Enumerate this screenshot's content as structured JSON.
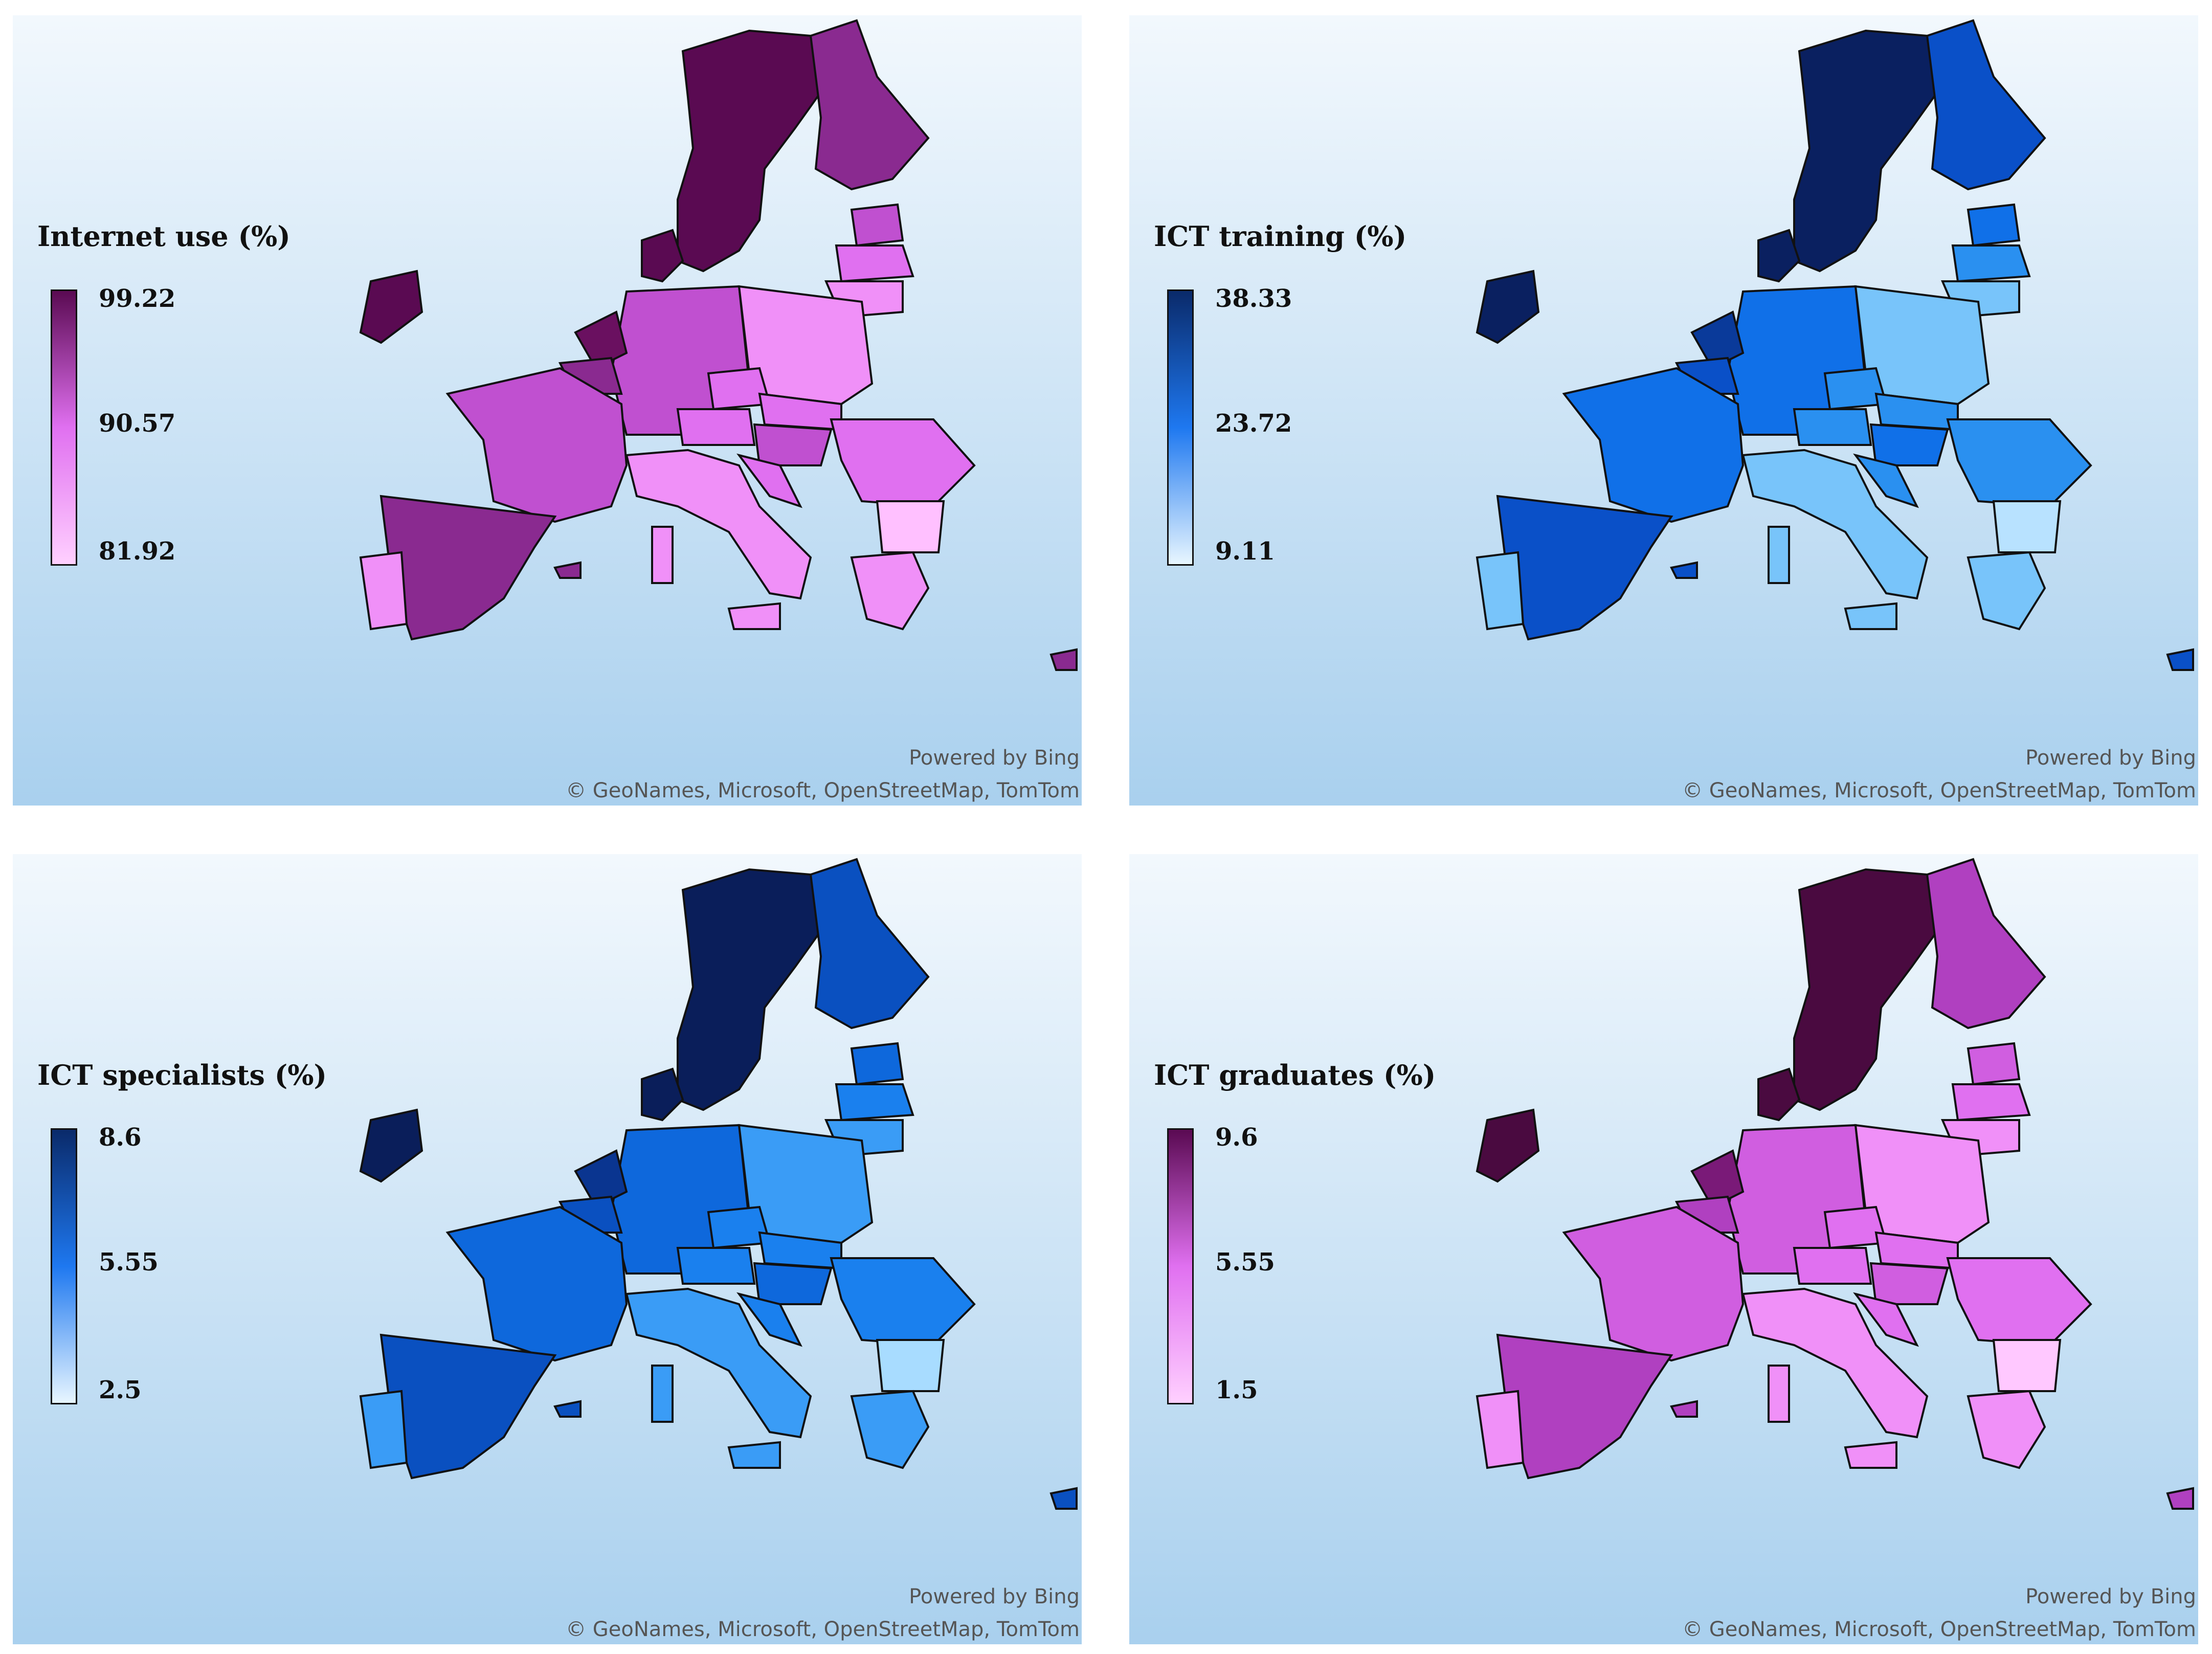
{
  "panels": [
    {
      "title": "Internet use (%)",
      "legend": {
        "max": "99.22",
        "mid": "90.57",
        "min": "81.92"
      },
      "colors": {
        "low": "#ffd0ff",
        "mid": "#e070f0",
        "high": "#5a0a52",
        "c1": "#5a0a52",
        "c2": "#6a1060",
        "c3": "#8a2a90",
        "c4": "#c050d0",
        "c5": "#e070f0",
        "c6": "#f090f8",
        "c7": "#ffc0ff"
      },
      "powered": "Powered by Bing",
      "copyright": "© GeoNames, Microsoft, OpenStreetMap, TomTom"
    },
    {
      "title": "ICT training (%)",
      "legend": {
        "max": "38.33",
        "mid": "23.72",
        "min": "9.11"
      },
      "colors": {
        "low": "#e8f6ff",
        "mid": "#1e78f0",
        "high": "#0a2a6a",
        "c1": "#0a2060",
        "c2": "#0a3a9a",
        "c3": "#0a50c8",
        "c4": "#1070e8",
        "c5": "#2a90f0",
        "c6": "#78c4fa",
        "c7": "#b8e2ff"
      },
      "powered": "Powered by Bing",
      "copyright": "© GeoNames, Microsoft, OpenStreetMap, TomTom"
    },
    {
      "title": "ICT specialists (%)",
      "legend": {
        "max": "8.6",
        "mid": "5.55",
        "min": "2.5"
      },
      "colors": {
        "low": "#e8f6ff",
        "mid": "#1e78f0",
        "high": "#0a2a6a",
        "c1": "#0a1e5a",
        "c2": "#0a3590",
        "c3": "#0a50c0",
        "c4": "#0e68dc",
        "c5": "#1a80ee",
        "c6": "#3a9cf6",
        "c7": "#a8dcff"
      },
      "powered": "Powered by Bing",
      "copyright": "© GeoNames, Microsoft, OpenStreetMap, TomTom"
    },
    {
      "title": "ICT graduates (%)",
      "legend": {
        "max": "9.6",
        "mid": "5.55",
        "min": "1.5"
      },
      "colors": {
        "low": "#ffd0ff",
        "mid": "#e070f0",
        "high": "#5a0a52",
        "c1": "#4a0a40",
        "c2": "#7a1a78",
        "c3": "#b040c0",
        "c4": "#d05ee0",
        "c5": "#e070f0",
        "c6": "#f090f8",
        "c7": "#ffc8ff"
      },
      "powered": "Powered by Bing",
      "copyright": "© GeoNames, Microsoft, OpenStreetMap, TomTom"
    }
  ]
}
